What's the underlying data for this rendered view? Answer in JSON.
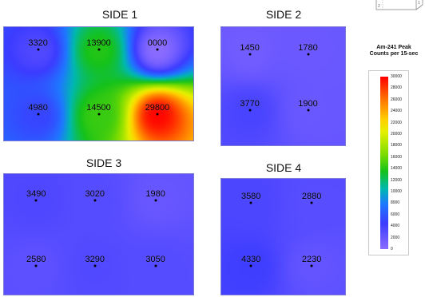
{
  "chart_data": {
    "type": "heatmap",
    "colorbar": {
      "title_line1": "Am-241 Peak",
      "title_line2": "Counts per 15-sec",
      "min": 0,
      "max": 30000,
      "ticks": [
        30000,
        28000,
        26000,
        24000,
        22000,
        20000,
        18000,
        16000,
        14000,
        12000,
        10000,
        8000,
        6000,
        4000,
        2000,
        0
      ]
    },
    "panels": [
      {
        "title": "SIDE 1",
        "points": [
          {
            "x": 1,
            "y": 1,
            "value": 3320
          },
          {
            "x": 2,
            "y": 1,
            "value": 13900
          },
          {
            "x": 3,
            "y": 1,
            "value": 0,
            "label": "0000"
          },
          {
            "x": 1,
            "y": 2,
            "value": 4980
          },
          {
            "x": 2,
            "y": 2,
            "value": 14500
          },
          {
            "x": 3,
            "y": 2,
            "value": 29800
          }
        ]
      },
      {
        "title": "SIDE 2",
        "points": [
          {
            "x": 1,
            "y": 1,
            "value": 1450
          },
          {
            "x": 2,
            "y": 1,
            "value": 1780
          },
          {
            "x": 1,
            "y": 2,
            "value": 3770
          },
          {
            "x": 2,
            "y": 2,
            "value": 1900
          }
        ]
      },
      {
        "title": "SIDE 3",
        "points": [
          {
            "x": 1,
            "y": 1,
            "value": 3490
          },
          {
            "x": 2,
            "y": 1,
            "value": 3020
          },
          {
            "x": 3,
            "y": 1,
            "value": 1980
          },
          {
            "x": 1,
            "y": 2,
            "value": 2580
          },
          {
            "x": 2,
            "y": 2,
            "value": 3290
          },
          {
            "x": 3,
            "y": 2,
            "value": 3050
          }
        ]
      },
      {
        "title": "SIDE 4",
        "points": [
          {
            "x": 1,
            "y": 1,
            "value": 3580
          },
          {
            "x": 2,
            "y": 1,
            "value": 2880
          },
          {
            "x": 1,
            "y": 2,
            "value": 4330
          },
          {
            "x": 2,
            "y": 2,
            "value": 2230
          }
        ]
      }
    ]
  },
  "icons": [
    "cube-icon"
  ]
}
